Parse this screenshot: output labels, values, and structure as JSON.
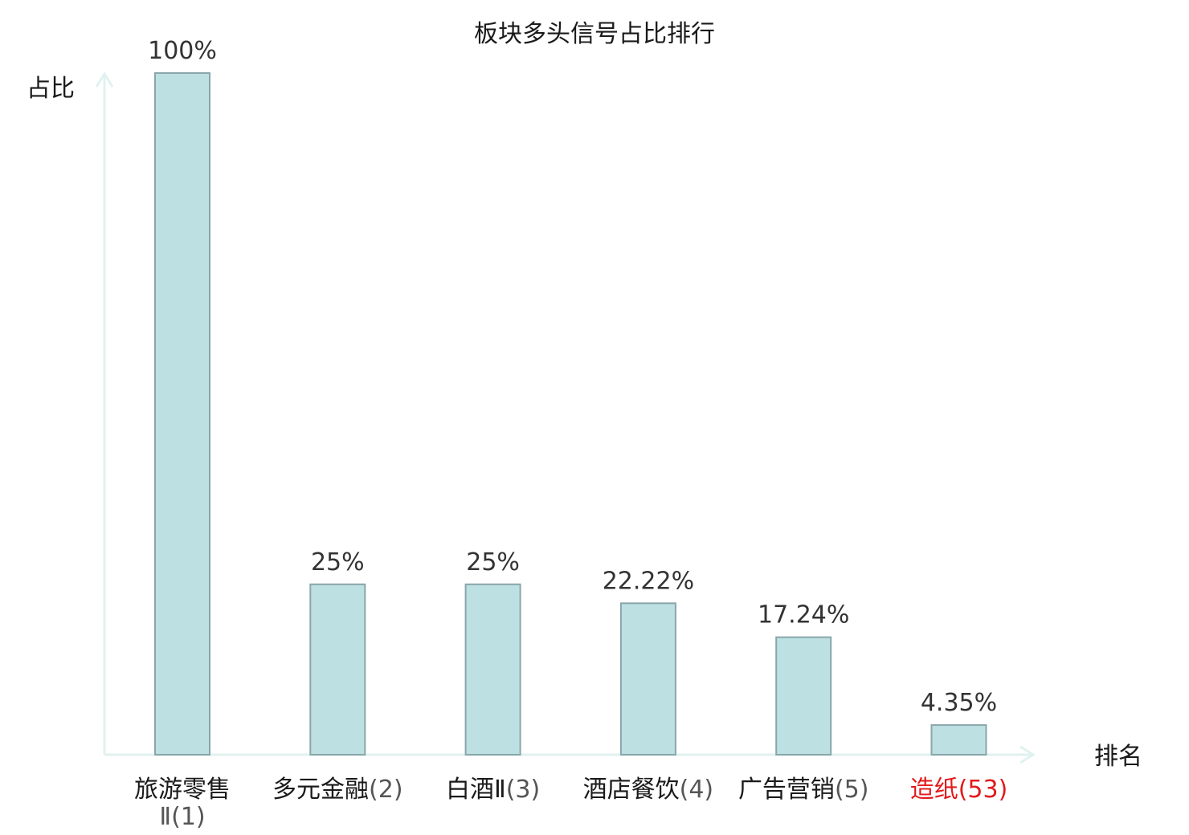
{
  "chart_data": {
    "type": "bar",
    "title": "板块多头信号占比排行",
    "ylabel": "占比",
    "xlabel": "排名",
    "categories": [
      {
        "name": "旅游零售Ⅱ",
        "rank": "(1)",
        "highlight": false
      },
      {
        "name": "多元金融",
        "rank": "(2)",
        "highlight": false
      },
      {
        "name": "白酒Ⅱ",
        "rank": "(3)",
        "highlight": false
      },
      {
        "name": "酒店餐饮",
        "rank": "(4)",
        "highlight": false
      },
      {
        "name": "广告营销",
        "rank": "(5)",
        "highlight": false
      },
      {
        "name": "造纸",
        "rank": "(53)",
        "highlight": true
      }
    ],
    "values": [
      100,
      25,
      25,
      22.22,
      17.24,
      4.35
    ],
    "value_labels": [
      "100%",
      "25%",
      "25%",
      "22.22%",
      "17.24%",
      "4.35%"
    ],
    "ylim": [
      0,
      100
    ],
    "grid": false,
    "legend": "none",
    "colors": {
      "bar_fill": "#bde0e3",
      "bar_stroke": "#8aa6aa",
      "axis": "#e0f2ef",
      "text": "#1a1a1a",
      "value_text": "#333333",
      "rank_text": "#555555",
      "highlight": "#e31a1c"
    }
  }
}
